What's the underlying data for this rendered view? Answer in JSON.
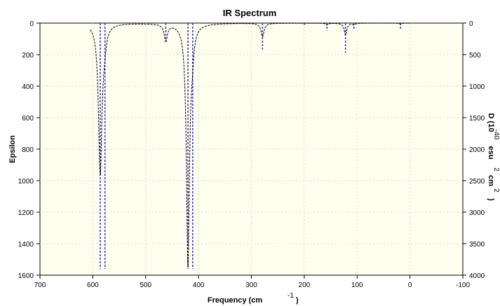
{
  "chart_data": {
    "type": "line",
    "title": "IR Spectrum",
    "xlabel": "Frequency (cm",
    "xlabel_sup": "-1",
    "xlabel_tail": ")",
    "ylabel": "Epsilon",
    "y2label": "D (10",
    "y2label_parts": [
      "-40",
      "esu",
      "2",
      "cm",
      "2",
      ")"
    ],
    "xlim": [
      700,
      -100
    ],
    "ylim": [
      1600,
      0
    ],
    "y2lim": [
      4000,
      0
    ],
    "x_ticks": [
      700,
      600,
      500,
      400,
      300,
      200,
      100,
      0,
      -100
    ],
    "y_ticks": [
      0,
      200,
      400,
      600,
      800,
      1000,
      1200,
      1400,
      1600
    ],
    "y2_ticks": [
      0,
      500,
      1000,
      1500,
      2000,
      2500,
      3000,
      3500,
      4000
    ],
    "grid": true,
    "colors": {
      "plot_bg": "#fffff0",
      "grid": "#d8d8c8",
      "spectrum": "#000000",
      "sticks": "#3a3ad8"
    },
    "series": [
      {
        "kind": "spectrum",
        "peaks": [
          {
            "x": 586,
            "y": 950,
            "hwhm": 4.0
          },
          {
            "x": 578,
            "y": 80,
            "hwhm": 4.0
          },
          {
            "x": 462,
            "y": 110,
            "hwhm": 3.5
          },
          {
            "x": 420,
            "y": 1530,
            "hwhm": 3.5
          },
          {
            "x": 412,
            "y": 120,
            "hwhm": 3.5
          },
          {
            "x": 279,
            "y": 85,
            "hwhm": 3.5
          },
          {
            "x": 157,
            "y": 10,
            "hwhm": 3.0
          },
          {
            "x": 122,
            "y": 75,
            "hwhm": 3.0
          },
          {
            "x": 106,
            "y": 8,
            "hwhm": 3.0
          },
          {
            "x": 18,
            "y": 5,
            "hwhm": 3.0
          }
        ],
        "x_range": [
          605,
          0
        ]
      },
      {
        "kind": "sticks",
        "points": [
          {
            "x": 586,
            "y": 3900
          },
          {
            "x": 577,
            "y": 3900
          },
          {
            "x": 462,
            "y": 250
          },
          {
            "x": 420,
            "y": 3900
          },
          {
            "x": 411,
            "y": 3900
          },
          {
            "x": 279,
            "y": 420
          },
          {
            "x": 200,
            "y": 30
          },
          {
            "x": 157,
            "y": 120
          },
          {
            "x": 122,
            "y": 470
          },
          {
            "x": 106,
            "y": 110
          },
          {
            "x": 18,
            "y": 110
          }
        ]
      }
    ]
  }
}
